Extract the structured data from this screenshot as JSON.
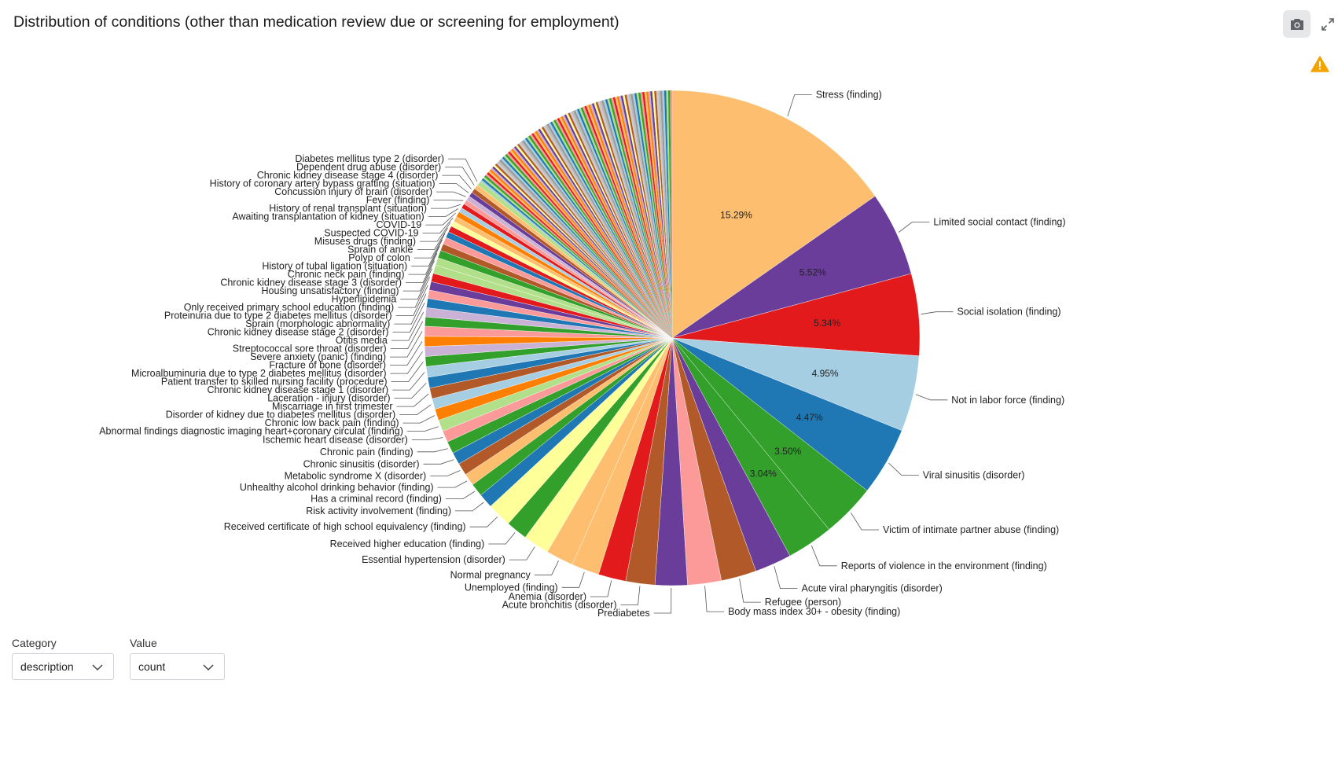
{
  "title": "Distribution of conditions (other than medication review due or screening for employment)",
  "toolbar": {
    "camera_icon": "camera-icon",
    "expand_icon": "expand-icon",
    "warning_icon": "warning-icon",
    "warning_color": "#f5a300"
  },
  "controls": {
    "category": {
      "label": "Category",
      "value": "description"
    },
    "value": {
      "label": "Value",
      "value": "count"
    }
  },
  "chart_data": {
    "type": "pie",
    "title": "Distribution of conditions (other than medication review due or screening for employment)",
    "start_angle_deg": 0,
    "direction": "clockwise",
    "legend": "none",
    "slices": [
      {
        "label": "Stress (finding)",
        "value": 15.29,
        "pct": "15.29%",
        "color": "#fdbf6f"
      },
      {
        "label": "Limited social contact (finding)",
        "value": 5.52,
        "pct": "5.52%",
        "color": "#6a3d9a"
      },
      {
        "label": "Social isolation (finding)",
        "value": 5.34,
        "pct": "5.34%",
        "color": "#e31a1c"
      },
      {
        "label": "Not in labor force (finding)",
        "value": 4.95,
        "pct": "4.95%",
        "color": "#a6cee3"
      },
      {
        "label": "Viral sinusitis (disorder)",
        "value": 4.47,
        "pct": "4.47%",
        "color": "#1f78b4"
      },
      {
        "label": "Victim of intimate partner abuse (finding)",
        "value": 3.5,
        "pct": "3.50%",
        "color": "#33a02c"
      },
      {
        "label": "Reports of violence in the environment (finding)",
        "value": 3.04,
        "pct": "3.04%",
        "color": "#33a02c"
      },
      {
        "label": "Acute viral pharyngitis (disorder)",
        "value": 2.4,
        "color": "#6a3d9a"
      },
      {
        "label": "Refugee (person)",
        "value": 2.3,
        "color": "#b15928"
      },
      {
        "label": "Body mass index 30+ - obesity (finding)",
        "value": 2.2,
        "color": "#fb9a99"
      },
      {
        "label": "Prediabetes",
        "value": 2.1,
        "color": "#6a3d9a"
      },
      {
        "label": "Acute bronchitis (disorder)",
        "value": 1.9,
        "color": "#b15928"
      },
      {
        "label": "Anemia (disorder)",
        "value": 1.8,
        "color": "#e31a1c"
      },
      {
        "label": "Unemployed (finding)",
        "value": 1.8,
        "color": "#fdbf6f"
      },
      {
        "label": "Normal pregnancy",
        "value": 1.8,
        "color": "#fdbf6f"
      },
      {
        "label": "Essential hypertension (disorder)",
        "value": 1.7,
        "color": "#ffff99"
      },
      {
        "label": "Received higher education (finding)",
        "value": 1.4,
        "color": "#33a02c"
      },
      {
        "label": "Received certificate of high school equivalency (finding)",
        "value": 1.6,
        "color": "#ffff99"
      },
      {
        "label": "Risk activity involvement (finding)",
        "value": 0.95,
        "color": "#1f78b4"
      },
      {
        "label": "Has a criminal record (finding)",
        "value": 0.85,
        "color": "#33a02c"
      },
      {
        "label": "Unhealthy alcohol drinking behavior (finding)",
        "value": 0.8,
        "color": "#fdbf6f"
      },
      {
        "label": "Metabolic syndrome X (disorder)",
        "value": 0.8,
        "color": "#b15928"
      },
      {
        "label": "Chronic sinusitis (disorder)",
        "value": 0.8,
        "color": "#1f78b4"
      },
      {
        "label": "Chronic pain (finding)",
        "value": 0.8,
        "color": "#33a02c"
      },
      {
        "label": "Ischemic heart disease (disorder)",
        "value": 0.75,
        "color": "#fb9a99"
      },
      {
        "label": "Abnormal findings diagnostic imaging heart+coronary circulat (finding)",
        "value": 0.75,
        "color": "#b2df8a"
      },
      {
        "label": "Chronic low back pain (finding)",
        "value": 0.75,
        "color": "#ff7f00"
      },
      {
        "label": "Disorder of kidney due to diabetes mellitus (disorder)",
        "value": 0.7,
        "color": "#a6cee3"
      },
      {
        "label": "Miscarriage in first trimester",
        "value": 0.7,
        "color": "#b15928"
      },
      {
        "label": "Laceration - injury (disorder)",
        "value": 0.7,
        "color": "#1f78b4"
      },
      {
        "label": "Chronic kidney disease stage 1 (disorder)",
        "value": 0.7,
        "color": "#a6cee3"
      },
      {
        "label": "Patient transfer to skilled nursing facility (procedure)",
        "value": 0.65,
        "color": "#33a02c"
      },
      {
        "label": "Microalbuminuria due to type 2 diabetes mellitus (disorder)",
        "value": 0.65,
        "color": "#cab2d6"
      },
      {
        "label": "Fracture of bone (disorder)",
        "value": 0.65,
        "color": "#ff7f00"
      },
      {
        "label": "Severe anxiety (panic) (finding)",
        "value": 0.65,
        "color": "#fb9a99"
      },
      {
        "label": "Streptococcal sore throat (disorder)",
        "value": 0.6,
        "color": "#33a02c"
      },
      {
        "label": "Otitis media",
        "value": 0.6,
        "color": "#cab2d6"
      },
      {
        "label": "Chronic kidney disease stage 2 (disorder)",
        "value": 0.6,
        "color": "#1f78b4"
      },
      {
        "label": "Sprain (morphologic abnormality)",
        "value": 0.55,
        "color": "#fb9a99"
      },
      {
        "label": "Proteinuria due to type 2 diabetes mellitus (disorder)",
        "value": 0.55,
        "color": "#6a3d9a"
      },
      {
        "label": "Only received primary school education (finding)",
        "value": 0.55,
        "color": "#e31a1c"
      },
      {
        "label": "Hyperlipidemia",
        "value": 0.55,
        "color": "#b2df8a"
      },
      {
        "label": "Housing unsatisfactory (finding)",
        "value": 0.5,
        "color": "#b2df8a"
      },
      {
        "label": "Chronic kidney disease stage 3 (disorder)",
        "value": 0.5,
        "color": "#33a02c"
      },
      {
        "label": "Chronic neck pain (finding)",
        "value": 0.45,
        "color": "#b15928"
      },
      {
        "label": "History of tubal ligation (situation)",
        "value": 0.45,
        "color": "#fb9a99"
      },
      {
        "label": "Polyp of colon",
        "value": 0.4,
        "color": "#1f78b4"
      },
      {
        "label": "Sprain of ankle",
        "value": 0.4,
        "color": "#e31a1c"
      },
      {
        "label": "Misuses drugs (finding)",
        "value": 0.35,
        "color": "#ffff99"
      },
      {
        "label": "Suspected COVID-19",
        "value": 0.35,
        "color": "#fdbf6f"
      },
      {
        "label": "COVID-19",
        "value": 0.35,
        "color": "#ff7f00"
      },
      {
        "label": "Awaiting transplantation of kidney (situation)",
        "value": 0.3,
        "color": "#a6cee3"
      },
      {
        "label": "History of renal transplant (situation)",
        "value": 0.3,
        "color": "#e31a1c"
      },
      {
        "label": "Fever (finding)",
        "value": 0.3,
        "color": "#fb9a99"
      },
      {
        "label": "Concussion injury of brain (disorder)",
        "value": 0.3,
        "color": "#cab2d6"
      },
      {
        "label": "History of coronary artery bypass grafting (situation)",
        "value": 0.3,
        "color": "#6a3d9a"
      },
      {
        "label": "Chronic kidney disease stage 4 (disorder)",
        "value": 0.3,
        "color": "#b15928"
      },
      {
        "label": "Dependent drug abuse (disorder)",
        "value": 0.3,
        "color": "#fdbf6f"
      },
      {
        "label": "Diabetes mellitus type 2 (disorder)",
        "value": 0.3,
        "color": "#b2df8a"
      }
    ],
    "tail_colors": [
      "#a6cee3",
      "#1f78b4",
      "#b2df8a",
      "#33a02c",
      "#fb9a99",
      "#e31a1c",
      "#fdbf6f",
      "#ff7f00",
      "#cab2d6",
      "#6a3d9a",
      "#ffff99",
      "#b15928",
      "#cccccc",
      "#bbbbbb",
      "#999999"
    ]
  }
}
